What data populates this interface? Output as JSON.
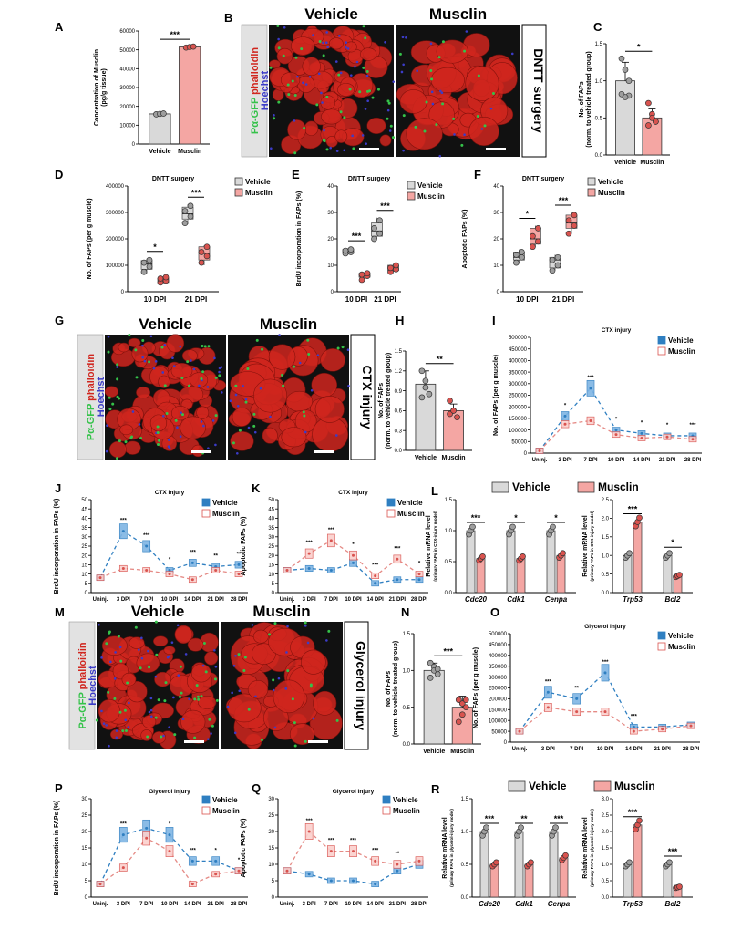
{
  "colors": {
    "vehicle_gray": "#d9d9d9",
    "musclin_red": "#f4a6a3",
    "dark_red": "#d9534f",
    "blue": "#2f7fc1",
    "light_blue": "#7fb5e4",
    "micro_red": "#d0261e",
    "micro_blue": "#3c3cc8",
    "micro_green": "#35c24a"
  },
  "panels": [
    "A",
    "B",
    "C",
    "D",
    "E",
    "F",
    "G",
    "H",
    "I",
    "J",
    "K",
    "L",
    "M",
    "N",
    "O",
    "P",
    "Q",
    "R"
  ],
  "legend": {
    "vehicle": "Vehicle",
    "musclin": "Musclin"
  },
  "sig": {
    "one": "*",
    "two": "**",
    "three": "***"
  },
  "micro": {
    "B": {
      "left": "Vehicle",
      "right": "Musclin",
      "side": "DNTT surgery"
    },
    "G": {
      "left": "Vehicle",
      "right": "Musclin",
      "side": "CTX injury"
    },
    "M": {
      "left": "Vehicle",
      "right": "Musclin",
      "side": "Glycerol injury"
    },
    "stain": {
      "a": "Pα-GFP",
      "b": "phalloidin",
      "c": "Hoechst"
    }
  },
  "chart_data": [
    {
      "panel": "A",
      "type": "bar",
      "categories": [
        "Vehicle",
        "Musclin"
      ],
      "values": [
        16000,
        51500
      ],
      "points": [
        [
          15800,
          16000,
          16200
        ],
        [
          51200,
          51500,
          51700
        ]
      ],
      "ylabel": "Concentration of Musclin (pg/g tissue)",
      "ylim": [
        0,
        60000
      ],
      "yticks": [
        "0",
        "10000",
        "20000",
        "30000",
        "40000",
        "50000",
        "60000"
      ],
      "sig": "***"
    },
    {
      "panel": "C",
      "type": "bar",
      "categories": [
        "Vehicle",
        "Musclin"
      ],
      "values": [
        1.0,
        0.5
      ],
      "sd": [
        0.25,
        0.12
      ],
      "points": [
        [
          1.3,
          1.15,
          0.8,
          0.82,
          0.78,
          1.0
        ],
        [
          0.7,
          0.55,
          0.45,
          0.4,
          0.5,
          0.45
        ]
      ],
      "ylabel": "No. of FAPs (norm. to vehicle treated group)",
      "ylim": [
        0,
        1.5
      ],
      "yticks": [
        "0.0",
        "0.5",
        "1.0",
        "1.5"
      ],
      "sig": "*"
    },
    {
      "panel": "D",
      "type": "box",
      "title": "DNTT surgery",
      "categories": [
        "10 DPI",
        "21 DPI"
      ],
      "series": [
        {
          "name": "Vehicle",
          "median": [
            105000,
            295000
          ],
          "q1": [
            85000,
            275000
          ],
          "q3": [
            118000,
            320000
          ],
          "min": [
            70000,
            255000
          ],
          "max": [
            125000,
            330000
          ],
          "points": [
            [
              75000,
              95000,
              110000,
              120000
            ],
            [
              260000,
              285000,
              305000,
              325000
            ]
          ]
        },
        {
          "name": "Musclin",
          "median": [
            40000,
            145000
          ],
          "q1": [
            35000,
            120000
          ],
          "q3": [
            52000,
            170000
          ],
          "min": [
            30000,
            100000
          ],
          "max": [
            58000,
            175000
          ],
          "points": [
            [
              35000,
              42000,
              50000,
              55000
            ],
            [
              110000,
              135000,
              150000,
              170000
            ]
          ]
        }
      ],
      "ylabel": "No. of FAPs (per g muscle)",
      "ylim": [
        0,
        400000
      ],
      "yticks": [
        "0",
        "100000",
        "200000",
        "300000",
        "400000"
      ],
      "sig": [
        "*",
        "***"
      ]
    },
    {
      "panel": "E",
      "type": "box",
      "title": "DNTT surgery",
      "categories": [
        "10 DPI",
        "21 DPI"
      ],
      "series": [
        {
          "name": "Vehicle",
          "median": [
            15,
            23
          ],
          "q1": [
            14.5,
            21
          ],
          "q3": [
            16,
            26
          ],
          "min": [
            14,
            20
          ],
          "max": [
            16.5,
            28
          ],
          "points": [
            [
              14.5,
              15,
              15.5,
              16
            ],
            [
              20,
              22,
              24,
              27
            ]
          ]
        },
        {
          "name": "Musclin",
          "median": [
            6,
            9
          ],
          "q1": [
            5.5,
            8
          ],
          "q3": [
            7,
            10
          ],
          "min": [
            4.5,
            7.5
          ],
          "max": [
            7.5,
            10.5
          ],
          "points": [
            [
              4.5,
              6,
              6.5,
              7
            ],
            [
              7.5,
              8.5,
              9,
              10
            ]
          ]
        }
      ],
      "ylabel": "BrdU incorporation in FAPs (%)",
      "ylim": [
        0,
        40
      ],
      "yticks": [
        "0",
        "10",
        "20",
        "30",
        "40"
      ],
      "sig": [
        "***",
        "***"
      ]
    },
    {
      "panel": "F",
      "type": "box",
      "title": "DNTT surgery",
      "categories": [
        "10 DPI",
        "21 DPI"
      ],
      "series": [
        {
          "name": "Vehicle",
          "median": [
            13,
            12
          ],
          "q1": [
            12,
            9
          ],
          "q3": [
            15,
            13
          ],
          "min": [
            11,
            8
          ],
          "max": [
            16,
            14
          ],
          "points": [
            [
              11,
              13,
              14,
              15
            ],
            [
              8,
              10,
              12,
              13
            ]
          ]
        },
        {
          "name": "Musclin",
          "median": [
            20,
            26
          ],
          "q1": [
            18,
            24
          ],
          "q3": [
            24,
            29
          ],
          "min": [
            17,
            22
          ],
          "max": [
            25,
            30
          ],
          "points": [
            [
              17,
              19,
              21,
              24
            ],
            [
              22,
              25,
              27,
              29
            ]
          ]
        }
      ],
      "ylabel": "Apoptotic FAPs (%)",
      "ylim": [
        0,
        40
      ],
      "yticks": [
        "0",
        "10",
        "20",
        "30",
        "40"
      ],
      "sig": [
        "*",
        "***"
      ]
    },
    {
      "panel": "H",
      "type": "bar",
      "categories": [
        "Vehicle",
        "Musclin"
      ],
      "values": [
        1.0,
        0.6
      ],
      "sd": [
        0.2,
        0.1
      ],
      "points": [
        [
          1.2,
          1.05,
          0.85,
          0.8,
          0.95
        ],
        [
          0.75,
          0.6,
          0.5,
          0.55,
          0.6
        ]
      ],
      "ylabel": "No. of FAPs (norm. to vehicle treated group)",
      "ylim": [
        0,
        1.5
      ],
      "yticks": [
        "0.0",
        "0.3",
        "0.6",
        "0.9",
        "1.2",
        "1.5"
      ],
      "sig": "**"
    },
    {
      "panel": "I",
      "type": "line",
      "title": "CTX injury",
      "x": [
        "Uninj.",
        "3 DPI",
        "7 DPI",
        "10 DPI",
        "14 DPI",
        "21 DPI",
        "28 DPI"
      ],
      "series": [
        {
          "name": "Vehicle",
          "values": [
            10000,
            160000,
            280000,
            100000,
            85000,
            75000,
            75000
          ]
        },
        {
          "name": "Musclin",
          "values": [
            10000,
            125000,
            140000,
            80000,
            65000,
            70000,
            60000
          ]
        }
      ],
      "stars": [
        "",
        "*",
        "***",
        "*",
        "*",
        "*",
        "***"
      ],
      "ylabel": "No. of FAPs (per g muscle)",
      "ylim": [
        0,
        500000
      ],
      "yticks": [
        "0",
        "50000",
        "100000",
        "150000",
        "200000",
        "250000",
        "300000",
        "350000",
        "400000",
        "450000",
        "500000"
      ]
    },
    {
      "panel": "J",
      "type": "line",
      "title": "CTX injury",
      "x": [
        "Uninj.",
        "3 DPI",
        "7 DPI",
        "10 DPI",
        "14 DPI",
        "21 DPI",
        "28 DPI"
      ],
      "series": [
        {
          "name": "Vehicle",
          "values": [
            8,
            33,
            25,
            12,
            16,
            14,
            15
          ]
        },
        {
          "name": "Musclin",
          "values": [
            8,
            13,
            12,
            10,
            7,
            12,
            10
          ]
        }
      ],
      "stars": [
        "",
        "***",
        "***",
        "*",
        "***",
        "**",
        "**"
      ],
      "ylabel": "BrdU incorporation in FAPs (%)",
      "ylim": [
        0,
        50
      ],
      "yticks": [
        "0",
        "5",
        "10",
        "15",
        "20",
        "25",
        "30",
        "35",
        "40",
        "45",
        "50"
      ]
    },
    {
      "panel": "K",
      "type": "line",
      "title": "CTX injury",
      "x": [
        "Uninj.",
        "3 DPI",
        "7 DPI",
        "10 DPI",
        "14 DPI",
        "21 DPI",
        "28 DPI"
      ],
      "series": [
        {
          "name": "Vehicle",
          "values": [
            12,
            13,
            12,
            16,
            5,
            7,
            7
          ]
        },
        {
          "name": "Musclin",
          "values": [
            12,
            21,
            28,
            20,
            9,
            18,
            10
          ]
        }
      ],
      "stars": [
        "",
        "***",
        "***",
        "*",
        "***",
        "***",
        "*"
      ],
      "ylabel": "Apoptotic FAPs (%)",
      "ylim": [
        0,
        50
      ],
      "yticks": [
        "0",
        "5",
        "10",
        "15",
        "20",
        "25",
        "30",
        "35",
        "40",
        "45",
        "50"
      ]
    },
    {
      "panel": "L",
      "type": "bar",
      "categories": [
        "Cdc20",
        "Cdk1",
        "Cenpa",
        "Trp53",
        "Bcl2"
      ],
      "series": [
        {
          "name": "Vehicle",
          "values": [
            1.0,
            1.0,
            1.0,
            1.0,
            1.0
          ]
        },
        {
          "name": "Musclin",
          "values": [
            0.55,
            0.55,
            0.6,
            1.9,
            0.45
          ]
        }
      ],
      "stars": [
        "***",
        "*",
        "*",
        "***",
        "*"
      ],
      "ylabel": "Relative mRNA level (primary FAPs in CTX-injury model)",
      "ylim_left": [
        0,
        1.5
      ],
      "ylim_right": [
        0,
        2.5
      ],
      "yticks_left": [
        "0.0",
        "0.5",
        "1.0",
        "1.5"
      ],
      "yticks_right": [
        "0.0",
        "0.5",
        "1.0",
        "1.5",
        "2.0",
        "2.5"
      ]
    },
    {
      "panel": "N",
      "type": "bar",
      "categories": [
        "Vehicle",
        "Musclin"
      ],
      "values": [
        1.0,
        0.5
      ],
      "sd": [
        0.1,
        0.15
      ],
      "points": [
        [
          1.1,
          1.05,
          0.95,
          0.9,
          1.0,
          1.02
        ],
        [
          0.6,
          0.55,
          0.5,
          0.3,
          0.4,
          0.6
        ]
      ],
      "ylabel": "No. of FAPs (norm. to vehicle treated group)",
      "ylim": [
        0,
        1.5
      ],
      "yticks": [
        "0.0",
        "0.5",
        "1.0",
        "1.5"
      ],
      "sig": "***"
    },
    {
      "panel": "O",
      "type": "line",
      "title": "Glycerol injury",
      "x": [
        "Uninj.",
        "3 DPI",
        "7 DPI",
        "10 DPI",
        "14 DPI",
        "21 DPI",
        "28 DPI"
      ],
      "series": [
        {
          "name": "Vehicle",
          "values": [
            50000,
            230000,
            200000,
            320000,
            70000,
            70000,
            80000
          ]
        },
        {
          "name": "Musclin",
          "values": [
            50000,
            160000,
            140000,
            140000,
            50000,
            60000,
            75000
          ]
        }
      ],
      "stars": [
        "",
        "***",
        "**",
        "***",
        "***",
        "",
        ""
      ],
      "ylabel": "No. of FAPs (per g muscle)",
      "ylim": [
        0,
        500000
      ],
      "yticks": [
        "0",
        "50000",
        "100000",
        "150000",
        "200000",
        "250000",
        "300000",
        "350000",
        "400000",
        "450000",
        "500000"
      ]
    },
    {
      "panel": "P",
      "type": "line",
      "title": "Glycerol injury",
      "x": [
        "Uninj.",
        "3 DPI",
        "7 DPI",
        "10 DPI",
        "14 DPI",
        "21 DPI",
        "28 DPI"
      ],
      "series": [
        {
          "name": "Vehicle",
          "values": [
            4,
            19,
            21,
            19,
            11,
            11,
            8
          ]
        },
        {
          "name": "Musclin",
          "values": [
            4,
            9,
            18,
            14,
            4,
            7,
            8
          ]
        }
      ],
      "stars": [
        "",
        "***",
        "",
        "*",
        "***",
        "*",
        "*"
      ],
      "ylabel": "BrdU incorporation in FAPs (%)",
      "ylim": [
        0,
        30
      ],
      "yticks": [
        "0",
        "5",
        "10",
        "15",
        "20",
        "25",
        "30"
      ]
    },
    {
      "panel": "Q",
      "type": "line",
      "title": "Glycerol injury",
      "x": [
        "Uninj.",
        "3 DPI",
        "7 DPI",
        "10 DPI",
        "14 DPI",
        "21 DPI",
        "28 DPI"
      ],
      "series": [
        {
          "name": "Vehicle",
          "values": [
            8,
            7,
            5,
            5,
            4,
            8,
            10
          ]
        },
        {
          "name": "Musclin",
          "values": [
            8,
            20,
            14,
            14,
            11,
            10,
            11
          ]
        }
      ],
      "stars": [
        "",
        "***",
        "***",
        "***",
        "***",
        "**",
        ""
      ],
      "ylabel": "Apoptotic FAPs (%)",
      "ylim": [
        0,
        30
      ],
      "yticks": [
        "0",
        "5",
        "10",
        "15",
        "20",
        "25",
        "30"
      ]
    },
    {
      "panel": "R",
      "type": "bar",
      "categories": [
        "Cdc20",
        "Cdk1",
        "Cenpa",
        "Trp53",
        "Bcl2"
      ],
      "series": [
        {
          "name": "Vehicle",
          "values": [
            1.0,
            1.0,
            1.0,
            1.0,
            1.0
          ]
        },
        {
          "name": "Musclin",
          "values": [
            0.5,
            0.5,
            0.6,
            2.2,
            0.3
          ]
        }
      ],
      "stars": [
        "***",
        "**",
        "***",
        "***",
        "***"
      ],
      "ylabel": "Relative mRNA level (primary FAPs in glycerol-injury model)",
      "ylim_left": [
        0,
        1.5
      ],
      "ylim_right": [
        0,
        3.0
      ],
      "yticks_left": [
        "0.0",
        "0.5",
        "1.0",
        "1.5"
      ],
      "yticks_right": [
        "0.0",
        "0.5",
        "1.0",
        "1.5",
        "2.0",
        "2.5",
        "3.0"
      ]
    }
  ]
}
